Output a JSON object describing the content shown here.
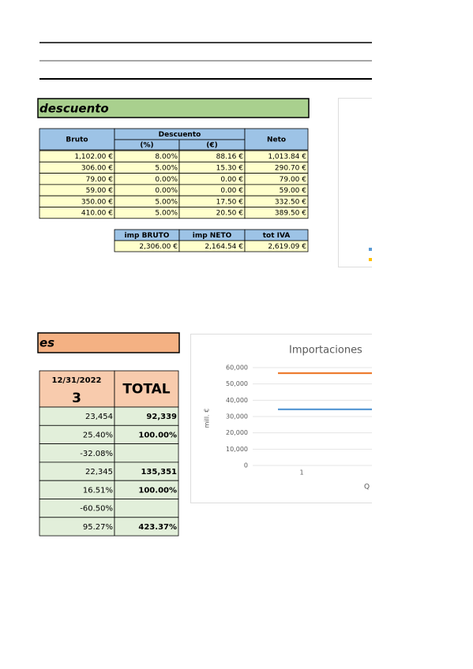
{
  "section1": {
    "title": "descuento",
    "table": {
      "header": {
        "bruto": "Bruto",
        "descuento": "Descuento",
        "neto": "Neto",
        "pct": "(%)",
        "eur": "(€)"
      },
      "rows": [
        [
          "1,102.00 €",
          "8.00%",
          "88.16 €",
          "1,013.84 €"
        ],
        [
          "306.00 €",
          "5.00%",
          "15.30 €",
          "290.70 €"
        ],
        [
          "79.00 €",
          "0.00%",
          "0.00 €",
          "79.00 €"
        ],
        [
          "59.00 €",
          "0.00%",
          "0.00 €",
          "59.00 €"
        ],
        [
          "350.00 €",
          "5.00%",
          "17.50 €",
          "332.50 €"
        ],
        [
          "410.00 €",
          "5.00%",
          "20.50 €",
          "389.50 €"
        ]
      ]
    },
    "summary": {
      "header": [
        "imp BRUTO",
        "imp NETO",
        "tot IVA"
      ],
      "row": [
        "2,306.00 €",
        "2,164.54 €",
        "2,619.09 €"
      ]
    }
  },
  "section2": {
    "title": "es",
    "table": {
      "date": "12/31/2022",
      "number": "3",
      "total": "TOTAL",
      "rows": [
        [
          "23,454",
          "92,339"
        ],
        [
          "25.40%",
          "100.00%"
        ],
        [
          "-32.08%",
          null
        ],
        [
          "22,345",
          "135,351"
        ],
        [
          "16.51%",
          "100.00%"
        ],
        [
          "-60.50%",
          null
        ],
        [
          "95.27%",
          "423.37%"
        ]
      ]
    }
  },
  "chart": {
    "type": "line",
    "title": "Importaciones",
    "y_label": "mill. €",
    "x_title": "Q",
    "categories": [
      "1"
    ],
    "ylim": [
      0,
      60000
    ],
    "yticks": [
      0,
      {
        "value": 10000,
        "label": "10,000"
      },
      {
        "value": 20000,
        "label": "20,000"
      },
      {
        "value": 30000,
        "label": "30,000"
      },
      {
        "value": 40000,
        "label": "40,000"
      },
      {
        "value": 50000,
        "label": "50,000"
      },
      {
        "value": 60000,
        "label": "60,000"
      }
    ],
    "grid": true,
    "series": [
      {
        "color": "#ed7d31",
        "values": [
          56600
        ]
      },
      {
        "color": "#5b9bd5",
        "values": [
          34400
        ]
      }
    ]
  }
}
